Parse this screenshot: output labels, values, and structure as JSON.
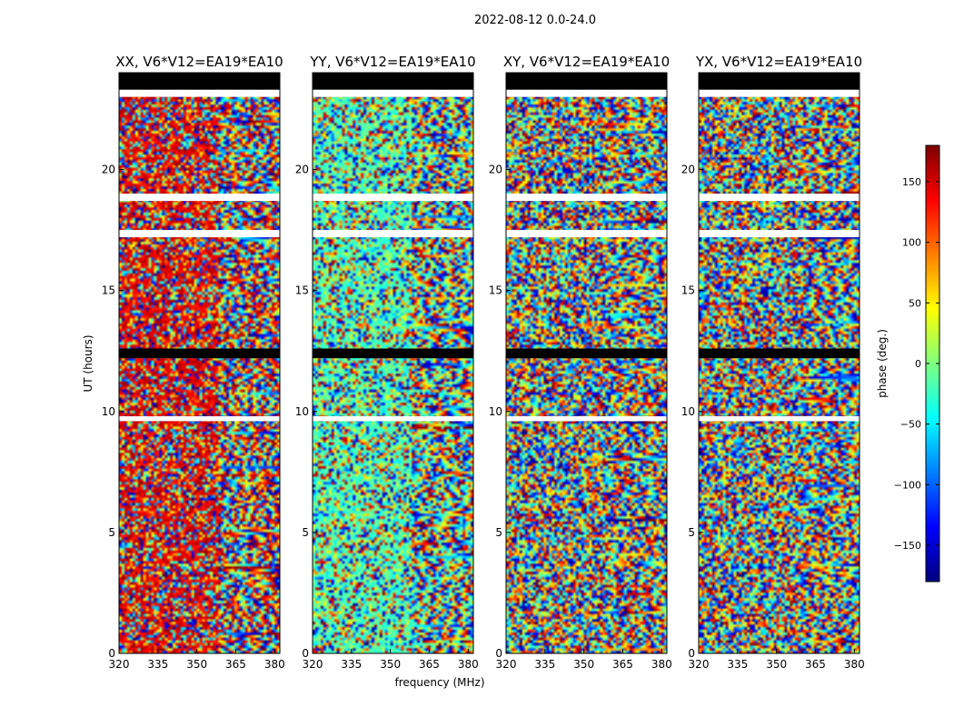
{
  "figure": {
    "suptitle": "2022-08-12 0.0-24.0"
  },
  "chart_data": {
    "type": "heatmap",
    "xlabel": "frequency (MHz)",
    "ylabel": "UT (hours)",
    "xlim": [
      320,
      382
    ],
    "ylim": [
      0,
      24
    ],
    "xticks": [
      320,
      335,
      350,
      365,
      380
    ],
    "yticks": [
      0,
      5,
      10,
      15,
      20
    ],
    "colorbar": {
      "label": "phase (deg.)",
      "range": [
        -180,
        180
      ],
      "ticks": [
        150,
        100,
        50,
        0,
        -50,
        -100,
        -150
      ],
      "colormap": "jet",
      "colors": [
        "#00007f",
        "#0000ff",
        "#007fff",
        "#00ffff",
        "#7fff7f",
        "#ffff00",
        "#ff7f00",
        "#ff0000",
        "#7f0000"
      ]
    },
    "panels": [
      {
        "title": "XX, V6*V12=EA19*EA10",
        "polarization": "XX"
      },
      {
        "title": "YY, V6*V12=EA19*EA10",
        "polarization": "YY"
      },
      {
        "title": "XY, V6*V12=EA19*EA10",
        "polarization": "XY"
      },
      {
        "title": "YX, V6*V12=EA19*EA10",
        "polarization": "YX"
      }
    ],
    "blank_ut_ranges": [
      [
        23.0,
        23.3
      ],
      [
        19.0,
        18.7
      ],
      [
        17.5,
        17.2
      ],
      [
        9.8,
        9.6
      ]
    ],
    "flagged_black_ut_ranges": [
      [
        23.3,
        24.0
      ],
      [
        12.2,
        12.6
      ]
    ]
  }
}
